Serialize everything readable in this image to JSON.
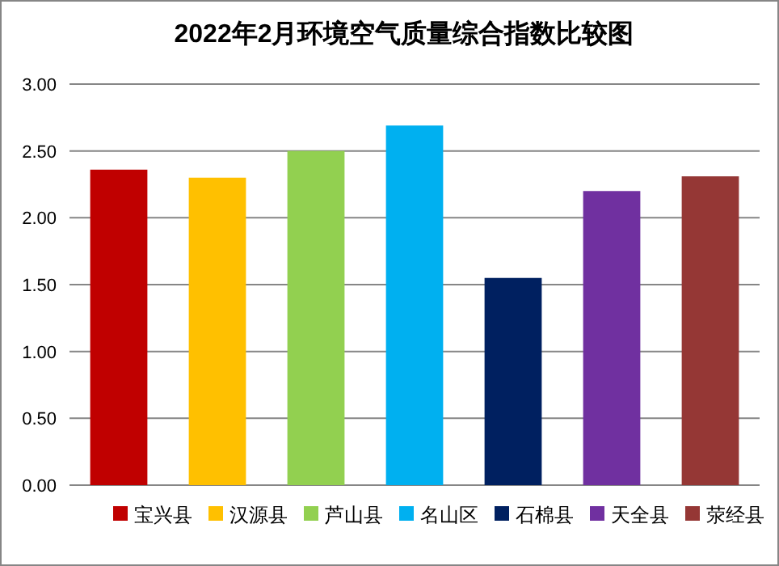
{
  "chart_data": {
    "type": "bar",
    "title": "2022年2月环境空气质量综合指数比较图",
    "categories": [
      null
    ],
    "series": [
      {
        "name": "宝兴县",
        "color": "#c00000",
        "values": [
          2.36
        ]
      },
      {
        "name": "汉源县",
        "color": "#ffc000",
        "values": [
          2.3
        ]
      },
      {
        "name": "芦山县",
        "color": "#92d050",
        "values": [
          2.5
        ]
      },
      {
        "name": "名山区",
        "color": "#00b0f0",
        "values": [
          2.69
        ]
      },
      {
        "name": "石棉县",
        "color": "#002060",
        "values": [
          1.55
        ]
      },
      {
        "name": "天全县",
        "color": "#7030a0",
        "values": [
          2.2
        ]
      },
      {
        "name": "荥经县",
        "color": "#953735",
        "values": [
          2.31
        ]
      }
    ],
    "ylim": [
      0,
      3
    ],
    "yticks": [
      {
        "value": 0,
        "label": "0.00"
      },
      {
        "value": 0.5,
        "label": "0.50"
      },
      {
        "value": 1,
        "label": "1.00"
      },
      {
        "value": 1.5,
        "label": "1.50"
      },
      {
        "value": 2,
        "label": "2.00"
      },
      {
        "value": 2.5,
        "label": "2.50"
      },
      {
        "value": 3,
        "label": "3.00"
      }
    ],
    "grid": "y",
    "legend": "bottom"
  }
}
